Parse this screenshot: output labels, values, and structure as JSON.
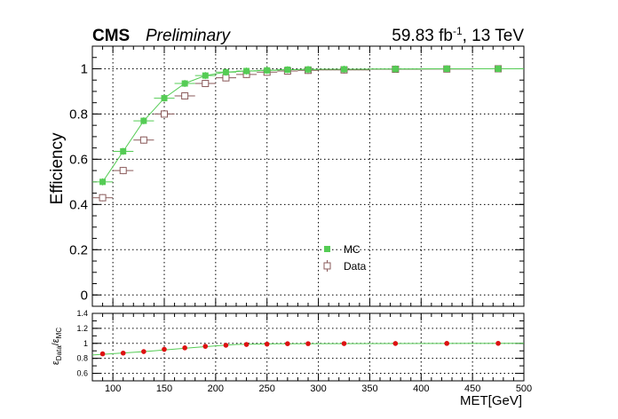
{
  "header": {
    "experiment": "CMS",
    "status": "Preliminary",
    "lumi_value": "59.83 fb",
    "lumi_exp": "-1",
    "energy": ", 13 TeV"
  },
  "colors": {
    "mc": "#55cc55",
    "data_marker": "#8a5a5a",
    "ratio_marker": "#dd1111",
    "ratio_line": "#55cc55",
    "axis": "#000000",
    "grid": "#000000"
  },
  "chart_data": [
    {
      "type": "scatter",
      "panel": "main",
      "ylabel": "Efficiency",
      "xlabel": "",
      "xlim": [
        80,
        500
      ],
      "ylim": [
        -0.05,
        1.1
      ],
      "grid": true,
      "x_ticks": [
        100,
        150,
        200,
        250,
        300,
        350,
        400,
        450,
        500
      ],
      "y_ticks": [
        0,
        0.2,
        0.4,
        0.6,
        0.8,
        1
      ],
      "y_tick_labels": [
        "0",
        "0.2",
        "0.4",
        "0.6",
        "0.8",
        "1"
      ],
      "legend": {
        "position": "center-bottom",
        "entries": [
          "MC",
          "Data"
        ]
      },
      "series": [
        {
          "name": "MC",
          "marker": "filled-square",
          "points": [
            {
              "x": 90,
              "xlo": 80,
              "xhi": 100,
              "y": 0.5
            },
            {
              "x": 110,
              "xlo": 100,
              "xhi": 120,
              "y": 0.635
            },
            {
              "x": 130,
              "xlo": 120,
              "xhi": 140,
              "y": 0.77
            },
            {
              "x": 150,
              "xlo": 140,
              "xhi": 160,
              "y": 0.87
            },
            {
              "x": 170,
              "xlo": 160,
              "xhi": 180,
              "y": 0.935
            },
            {
              "x": 190,
              "xlo": 180,
              "xhi": 200,
              "y": 0.97
            },
            {
              "x": 210,
              "xlo": 200,
              "xhi": 220,
              "y": 0.985
            },
            {
              "x": 230,
              "xlo": 220,
              "xhi": 240,
              "y": 0.99
            },
            {
              "x": 250,
              "xlo": 240,
              "xhi": 260,
              "y": 0.993
            },
            {
              "x": 270,
              "xlo": 260,
              "xhi": 280,
              "y": 0.996
            },
            {
              "x": 290,
              "xlo": 280,
              "xhi": 300,
              "y": 0.997
            },
            {
              "x": 325,
              "xlo": 300,
              "xhi": 350,
              "y": 0.998
            },
            {
              "x": 375,
              "xlo": 350,
              "xhi": 400,
              "y": 0.999
            },
            {
              "x": 425,
              "xlo": 400,
              "xhi": 450,
              "y": 1.0
            },
            {
              "x": 475,
              "xlo": 450,
              "xhi": 500,
              "y": 1.0
            }
          ]
        },
        {
          "name": "Data",
          "marker": "open-square",
          "points": [
            {
              "x": 90,
              "xlo": 80,
              "xhi": 100,
              "y": 0.43
            },
            {
              "x": 110,
              "xlo": 100,
              "xhi": 120,
              "y": 0.55
            },
            {
              "x": 130,
              "xlo": 120,
              "xhi": 140,
              "y": 0.685
            },
            {
              "x": 150,
              "xlo": 140,
              "xhi": 160,
              "y": 0.8
            },
            {
              "x": 170,
              "xlo": 160,
              "xhi": 180,
              "y": 0.88
            },
            {
              "x": 190,
              "xlo": 180,
              "xhi": 200,
              "y": 0.935
            },
            {
              "x": 210,
              "xlo": 200,
              "xhi": 220,
              "y": 0.96
            },
            {
              "x": 230,
              "xlo": 220,
              "xhi": 240,
              "y": 0.975
            },
            {
              "x": 250,
              "xlo": 240,
              "xhi": 260,
              "y": 0.985
            },
            {
              "x": 270,
              "xlo": 260,
              "xhi": 280,
              "y": 0.99
            },
            {
              "x": 290,
              "xlo": 280,
              "xhi": 300,
              "y": 0.993
            },
            {
              "x": 325,
              "xlo": 300,
              "xhi": 350,
              "y": 0.995
            },
            {
              "x": 375,
              "xlo": 350,
              "xhi": 400,
              "y": 0.998
            },
            {
              "x": 425,
              "xlo": 400,
              "xhi": 450,
              "y": 0.999
            },
            {
              "x": 475,
              "xlo": 450,
              "xhi": 500,
              "y": 1.0
            }
          ]
        }
      ]
    },
    {
      "type": "scatter",
      "panel": "ratio",
      "ylabel_main": "ε",
      "ylabel_sub1": "Data",
      "ylabel_sep": "/ε",
      "ylabel_sub2": "MC",
      "xlabel": "MET[GeV]",
      "xlim": [
        80,
        500
      ],
      "ylim": [
        0.5,
        1.4
      ],
      "grid": true,
      "x_ticks": [
        100,
        150,
        200,
        250,
        300,
        350,
        400,
        450,
        500
      ],
      "x_tick_labels": [
        "100",
        "150",
        "200",
        "250",
        "300",
        "350",
        "400",
        "450",
        "500"
      ],
      "y_ticks": [
        0.6,
        0.8,
        1.0,
        1.2,
        1.4
      ],
      "y_tick_labels": [
        "0.6",
        "0.8",
        "1",
        "1.2",
        "1.4"
      ],
      "series": [
        {
          "name": "Data/MC",
          "marker": "filled-circle",
          "points": [
            {
              "x": 90,
              "y": 0.86
            },
            {
              "x": 110,
              "y": 0.87
            },
            {
              "x": 130,
              "y": 0.89
            },
            {
              "x": 150,
              "y": 0.92
            },
            {
              "x": 170,
              "y": 0.94
            },
            {
              "x": 190,
              "y": 0.96
            },
            {
              "x": 210,
              "y": 0.975
            },
            {
              "x": 230,
              "y": 0.985
            },
            {
              "x": 250,
              "y": 0.99
            },
            {
              "x": 270,
              "y": 0.995
            },
            {
              "x": 290,
              "y": 0.996
            },
            {
              "x": 325,
              "y": 0.997
            },
            {
              "x": 375,
              "y": 0.998
            },
            {
              "x": 425,
              "y": 0.999
            },
            {
              "x": 475,
              "y": 1.0
            }
          ]
        },
        {
          "name": "fit",
          "marker": "line",
          "points": [
            {
              "x": 80,
              "y": 0.845
            },
            {
              "x": 130,
              "y": 0.89
            },
            {
              "x": 180,
              "y": 0.945
            },
            {
              "x": 220,
              "y": 0.985
            },
            {
              "x": 260,
              "y": 0.995
            },
            {
              "x": 500,
              "y": 1.0
            }
          ]
        }
      ]
    }
  ]
}
